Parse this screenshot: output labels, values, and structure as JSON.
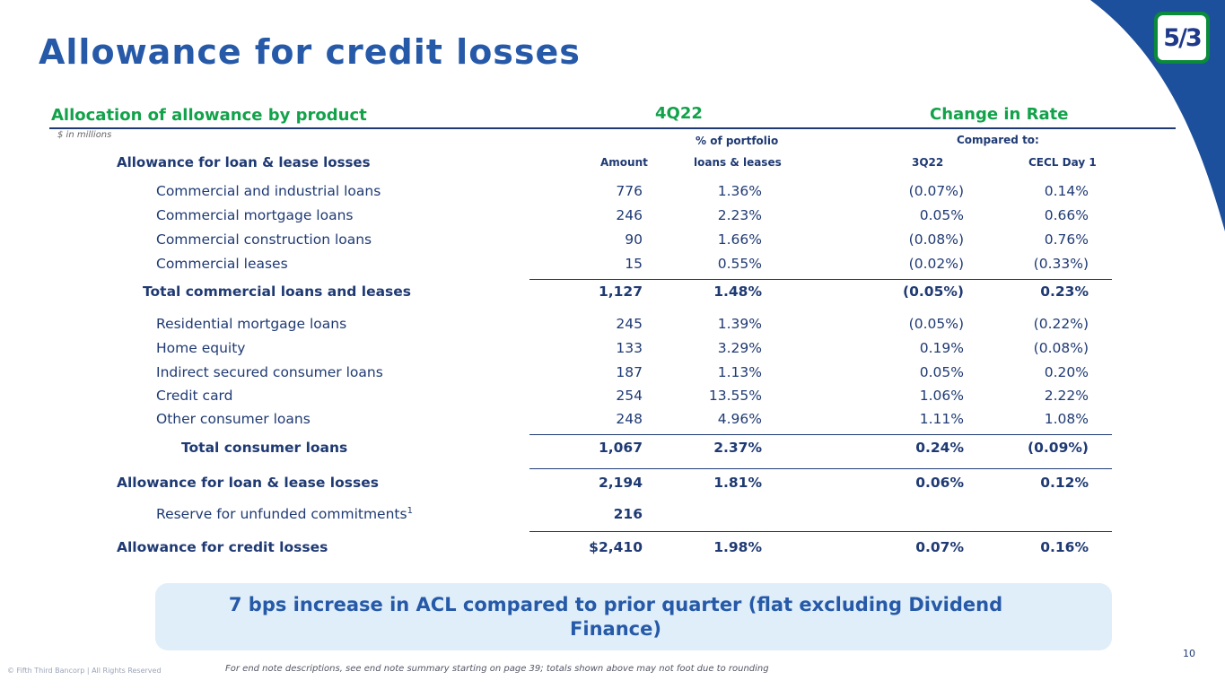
{
  "title": "Allowance for credit losses",
  "logo_text": "5/3",
  "headers": {
    "allocation": "Allocation of allowance by product",
    "period": "4Q22",
    "change": "Change in Rate",
    "units": "$ in millions",
    "portfolio_line1": "% of portfolio",
    "compared_to": "Compared to:",
    "amount": "Amount",
    "portfolio_line2": "loans & leases",
    "q3": "3Q22",
    "cecl": "CECL Day 1",
    "allowance_loan_lease": "Allowance for loan & lease losses"
  },
  "rows": [
    {
      "label": "Commercial and industrial loans",
      "amount": "776",
      "pct": "1.36%",
      "q3": "(0.07%)",
      "cecl": "0.14%"
    },
    {
      "label": "Commercial mortgage loans",
      "amount": "246",
      "pct": "2.23%",
      "q3": "0.05%",
      "cecl": "0.66%"
    },
    {
      "label": "Commercial construction loans",
      "amount": "90",
      "pct": "1.66%",
      "q3": "(0.08%)",
      "cecl": "0.76%"
    },
    {
      "label": "Commercial leases",
      "amount": "15",
      "pct": "0.55%",
      "q3": "(0.02%)",
      "cecl": "(0.33%)"
    },
    {
      "label": "Total commercial loans and leases",
      "amount": "1,127",
      "pct": "1.48%",
      "q3": "(0.05%)",
      "cecl": "0.23%"
    },
    {
      "label": "Residential mortgage loans",
      "amount": "245",
      "pct": "1.39%",
      "q3": "(0.05%)",
      "cecl": "(0.22%)"
    },
    {
      "label": "Home equity",
      "amount": "133",
      "pct": "3.29%",
      "q3": "0.19%",
      "cecl": "(0.08%)"
    },
    {
      "label": "Indirect secured consumer loans",
      "amount": "187",
      "pct": "1.13%",
      "q3": "0.05%",
      "cecl": "0.20%"
    },
    {
      "label": "Credit card",
      "amount": "254",
      "pct": "13.55%",
      "q3": "1.06%",
      "cecl": "2.22%"
    },
    {
      "label": "Other consumer loans",
      "amount": "248",
      "pct": "4.96%",
      "q3": "1.11%",
      "cecl": "1.08%"
    },
    {
      "label": "Total consumer loans",
      "amount": "1,067",
      "pct": "2.37%",
      "q3": "0.24%",
      "cecl": "(0.09%)"
    },
    {
      "label": "Allowance for loan & lease losses",
      "amount": "2,194",
      "pct": "1.81%",
      "q3": "0.06%",
      "cecl": "0.12%"
    },
    {
      "label": "Reserve for unfunded commitments",
      "footnote": "1",
      "amount": "216"
    },
    {
      "label": "Allowance for credit losses",
      "amount": "$2,410",
      "pct": "1.98%",
      "q3": "0.07%",
      "cecl": "0.16%"
    }
  ],
  "callout": "7 bps increase in ACL compared to prior quarter (flat excluding Dividend Finance)",
  "page_number": "10",
  "copyright": "© Fifth Third Bancorp | All Rights Reserved",
  "footnote": "For end note descriptions, see end note summary starting on page 39; totals shown above may not foot due to rounding",
  "colors": {
    "brand_blue": "#2659a8",
    "navy": "#1f3a73",
    "green": "#12a24a",
    "corner_blue": "#1c4f9c"
  }
}
